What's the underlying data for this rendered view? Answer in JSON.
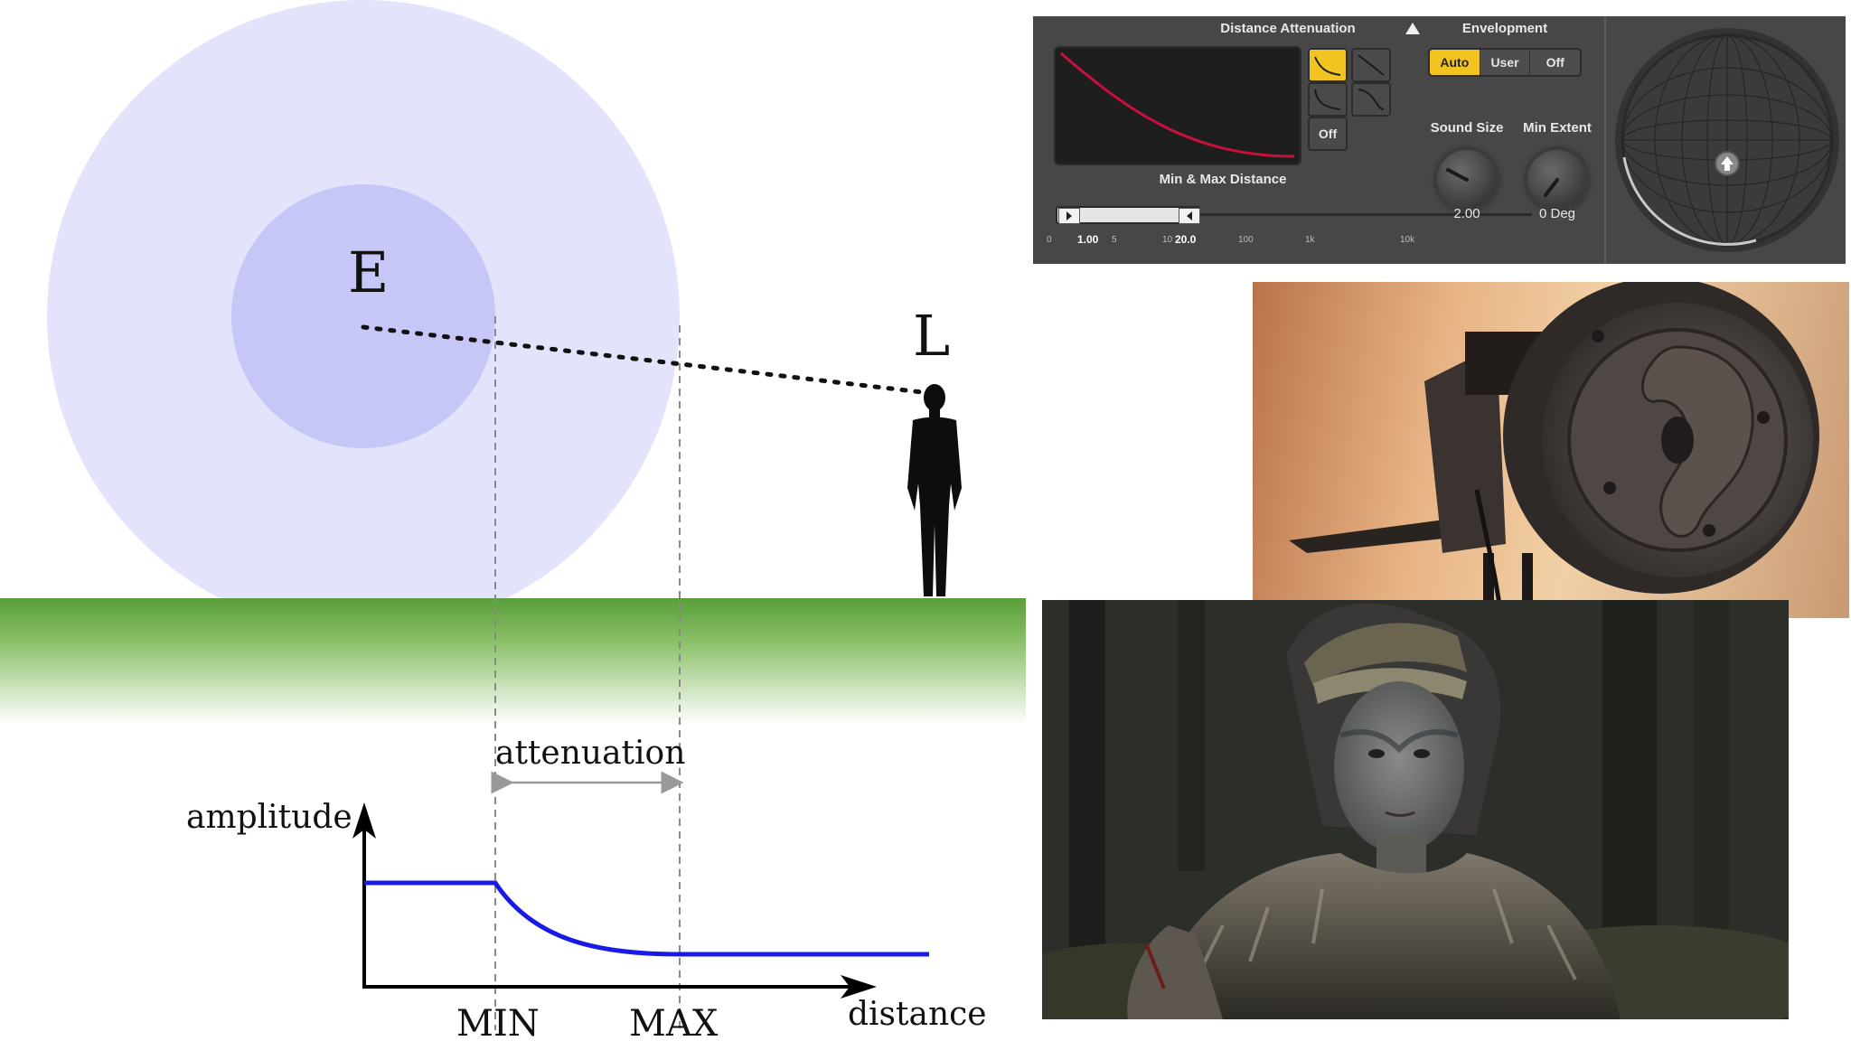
{
  "diagram": {
    "emitter_label": "E",
    "listener_label": "L",
    "attenuation_label": "attenuation",
    "y_axis_label": "amplitude",
    "x_axis_label": "distance",
    "min_label": "MIN",
    "max_label": "MAX",
    "colors": {
      "outer_radius": "#e3e3fb",
      "inner_radius": "#c7c7f7",
      "ground": "#5aa03c",
      "curve": "#1a1ae6"
    }
  },
  "plugin": {
    "distance_attenuation_title": "Distance Attenuation",
    "curve_off_label": "Off",
    "min_max_title": "Min & Max Distance",
    "min_value": "1.00",
    "max_value": "20.0",
    "ticks": [
      "0",
      "5",
      "10",
      "100",
      "1k",
      "10k"
    ],
    "envelopment_title": "Envelopment",
    "envelopment_options": [
      "Auto",
      "User",
      "Off"
    ],
    "envelopment_selected": "Auto",
    "sound_size_label": "Sound Size",
    "sound_size_value": "2.00",
    "min_extent_label": "Min Extent",
    "min_extent_value": "0 Deg",
    "accent_color": "#f2c422",
    "curve_color": "#c8103c"
  },
  "photos": {
    "binaural_mic": "binaural dummy-head microphone ear",
    "game_still": "game character with painted face and fur cloak"
  }
}
